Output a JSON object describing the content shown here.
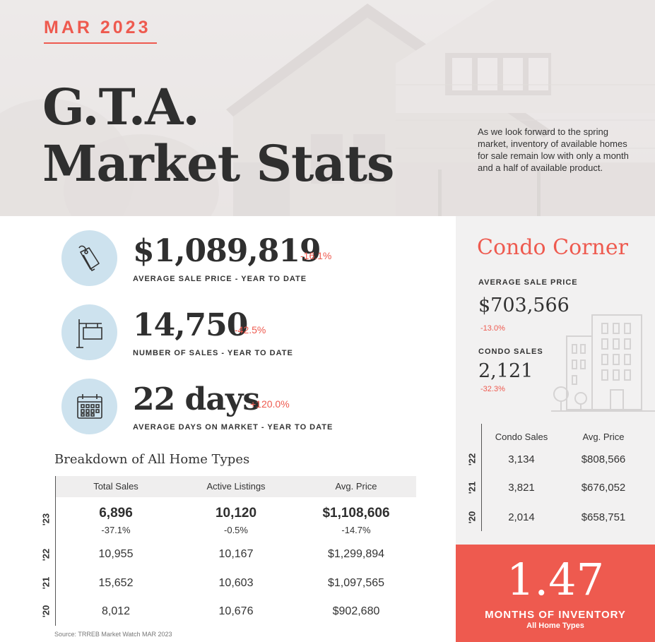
{
  "hero": {
    "date": "MAR 2023",
    "title_line1": "G.T.A.",
    "title_line2": "Market Stats",
    "description": "As we look forward to the spring market, inventory of available homes for sale remain low with only a month and a half of available product."
  },
  "stats": [
    {
      "icon": "price-tag-icon",
      "value": "$1,089,819",
      "change": "-16.1%",
      "caption": "AVERAGE SALE PRICE - YEAR TO DATE"
    },
    {
      "icon": "sale-sign-icon",
      "value": "14,750",
      "change": "-42.5%",
      "caption": "NUMBER OF SALES - YEAR TO DATE"
    },
    {
      "icon": "calendar-icon",
      "value": "22 days",
      "change": "+120.0%",
      "caption": "AVERAGE DAYS ON MARKET - YEAR TO DATE"
    }
  ],
  "breakdown": {
    "title": "Breakdown of All Home Types",
    "columns": [
      "Total Sales",
      "Active Listings",
      "Avg. Price"
    ],
    "rows": [
      {
        "year": "'23",
        "values": [
          "6,896",
          "10,120",
          "$1,108,606"
        ],
        "changes": [
          "-37.1%",
          "-0.5%",
          "-14.7%"
        ]
      },
      {
        "year": "'22",
        "values": [
          "10,955",
          "10,167",
          "$1,299,894"
        ]
      },
      {
        "year": "'21",
        "values": [
          "15,652",
          "10,603",
          "$1,097,565"
        ]
      },
      {
        "year": "'20",
        "values": [
          "8,012",
          "10,676",
          "$902,680"
        ]
      }
    ],
    "source": "Source: TRREB Market Watch MAR 2023"
  },
  "condo": {
    "title": "Condo Corner",
    "avg_price_label": "AVERAGE SALE PRICE",
    "avg_price_value": "$703,566",
    "avg_price_change": "-13.0%",
    "sales_label": "CONDO SALES",
    "sales_value": "2,121",
    "sales_change": "-32.3%",
    "columns": [
      "Condo Sales",
      "Avg. Price"
    ],
    "rows": [
      {
        "year": "'22",
        "values": [
          "3,134",
          "$808,566"
        ]
      },
      {
        "year": "'21",
        "values": [
          "3,821",
          "$676,052"
        ]
      },
      {
        "year": "'20",
        "values": [
          "2,014",
          "$658,751"
        ]
      }
    ]
  },
  "inventory": {
    "value": "1.47",
    "label": "MONTHS OF INVENTORY",
    "sublabel": "All Home Types"
  },
  "colors": {
    "accent": "#ee5a4f",
    "icon_bg": "#cde2ee",
    "text": "#333333",
    "panel": "#f2f1f1"
  }
}
